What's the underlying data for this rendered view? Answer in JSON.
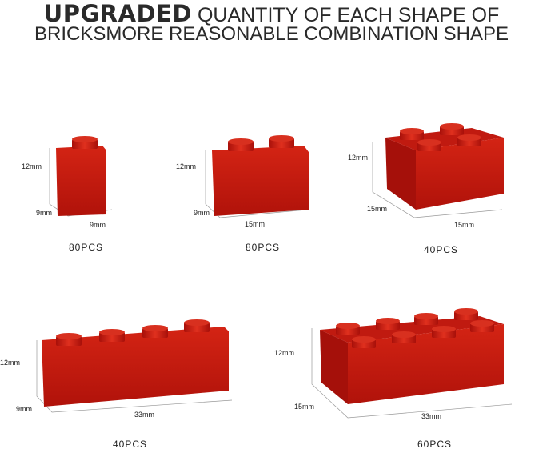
{
  "title": {
    "bold": "UPGRADED",
    "line1_rest": " QUANTITY OF EACH SHAPE OF",
    "line2": "BRICKSMORE REASONABLE COMBINATION SHAPE"
  },
  "brick_color": "#c8190f",
  "bricks": [
    {
      "height": "12mm",
      "depth": "9mm",
      "width": "9mm",
      "quantity": "80PCS"
    },
    {
      "height": "12mm",
      "depth": "9mm",
      "width": "15mm",
      "quantity": "80PCS"
    },
    {
      "height": "12mm",
      "depth": "15mm",
      "width": "15mm",
      "quantity": "40PCS"
    },
    {
      "height": "12mm",
      "depth": "9mm",
      "width": "33mm",
      "quantity": "40PCS"
    },
    {
      "height": "12mm",
      "depth": "15mm",
      "width": "33mm",
      "quantity": "60PCS"
    }
  ]
}
